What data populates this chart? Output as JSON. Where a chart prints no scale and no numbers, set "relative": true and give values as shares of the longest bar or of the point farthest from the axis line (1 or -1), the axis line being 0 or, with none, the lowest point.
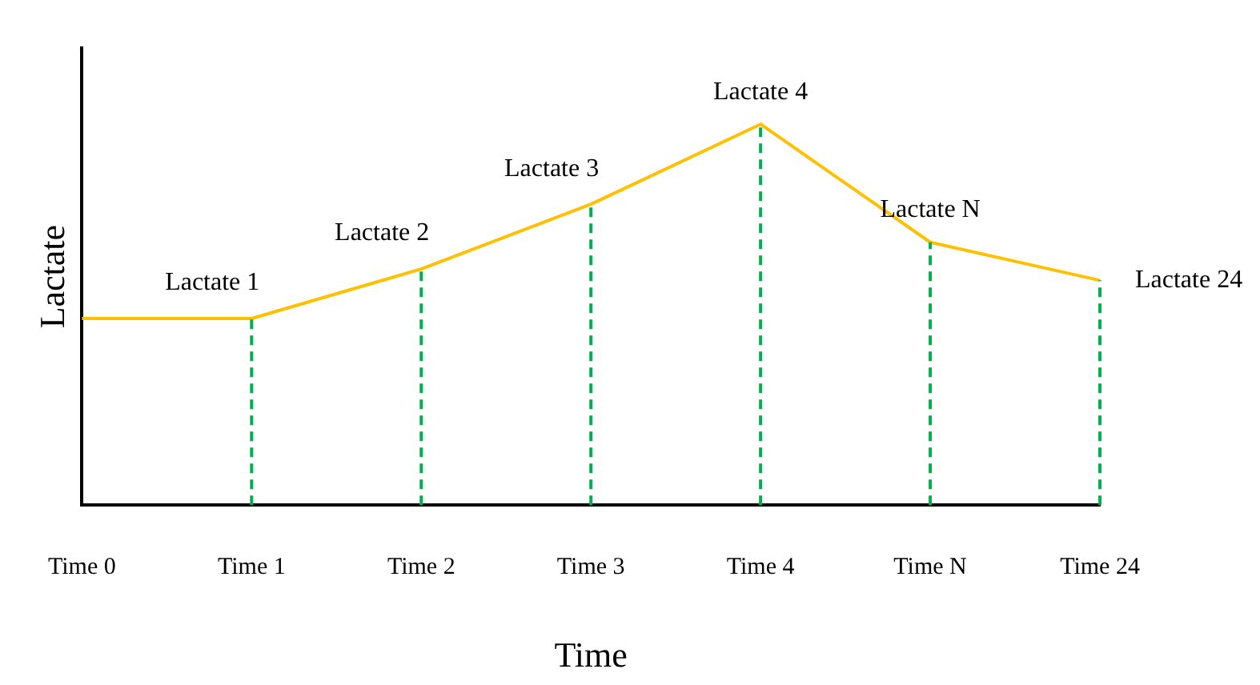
{
  "chart_data": {
    "type": "line",
    "xlabel": "Time",
    "ylabel": "Lactate",
    "relative": true,
    "categories": [
      "Time 0",
      "Time 1",
      "Time 2",
      "Time 3",
      "Time 4",
      "Time N",
      "Time 24"
    ],
    "series": [
      {
        "color": "#ffc000",
        "values": [
          0.49,
          0.49,
          0.62,
          0.79,
          1,
          0.69,
          0.59
        ]
      }
    ],
    "marker": "none",
    "line_style": "solid",
    "grid": false,
    "legend": false,
    "ref_lines": [
      {
        "axis": "x",
        "value": "Time 1",
        "color": "#00b050",
        "line_style": "dashed"
      },
      {
        "axis": "x",
        "value": "Time 2",
        "color": "#00b050",
        "line_style": "dashed"
      },
      {
        "axis": "x",
        "value": "Time 3",
        "color": "#00b050",
        "line_style": "dashed"
      },
      {
        "axis": "x",
        "value": "Time 4",
        "color": "#00b050",
        "line_style": "dashed"
      },
      {
        "axis": "x",
        "value": "Time N",
        "color": "#00b050",
        "line_style": "dashed"
      },
      {
        "axis": "x",
        "value": "Time 24",
        "color": "#00b050",
        "line_style": "dashed"
      }
    ],
    "annotations": [
      {
        "text": "Lactate 1",
        "x": "Time 1",
        "y": 0.49
      },
      {
        "text": "Lactate 2",
        "x": "Time 2",
        "y": 0.62
      },
      {
        "text": "Lactate 3",
        "x": "Time 3",
        "y": 0.79
      },
      {
        "text": "Lactate 4",
        "x": "Time 4",
        "y": 1
      },
      {
        "text": "Lactate N",
        "x": "Time N",
        "y": 0.69
      },
      {
        "text": "Lactate 24",
        "x": "Time 24",
        "y": 0.59
      }
    ]
  }
}
